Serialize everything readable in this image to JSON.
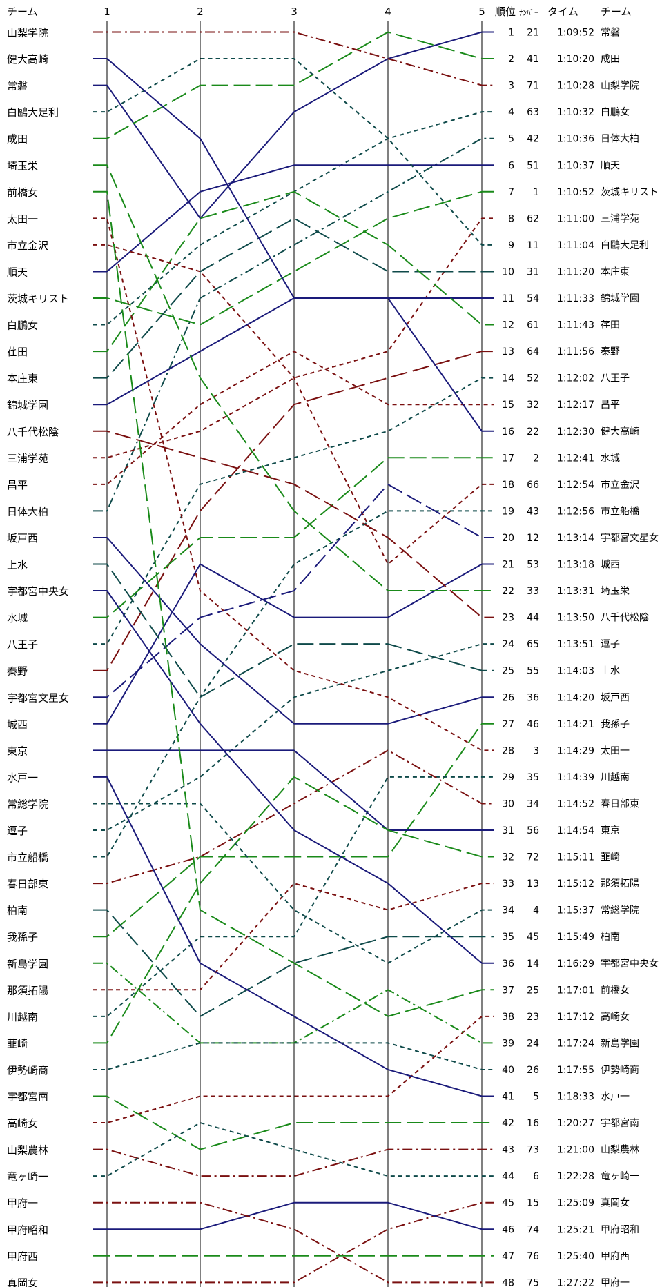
{
  "chart_data": {
    "type": "line",
    "title": "",
    "header": {
      "left_team": "チーム",
      "rank": "順位",
      "number": "ﾅﾝﾊﾞｰ",
      "time": "タイム",
      "right_team": "チーム"
    },
    "x": [
      "1",
      "2",
      "3",
      "4",
      "5"
    ],
    "ylim": [
      1,
      48
    ],
    "y_inverted": true,
    "start_order": [
      "山梨学院",
      "健大高崎",
      "常磐",
      "白鷗大足利",
      "成田",
      "埼玉栄",
      "前橋女",
      "太田一",
      "市立金沢",
      "順天",
      "茨城キリスト",
      "白鵬女",
      "荏田",
      "本庄東",
      "錦城学園",
      "八千代松陰",
      "三浦学苑",
      "昌平",
      "日体大柏",
      "坂戸西",
      "上水",
      "宇都宮中央女",
      "水城",
      "八王子",
      "秦野",
      "宇都宮文星女",
      "城西",
      "東京",
      "水戸一",
      "常総学院",
      "逗子",
      "市立船橋",
      "春日部東",
      "柏南",
      "我孫子",
      "新島学園",
      "那須拓陽",
      "川越南",
      "韮崎",
      "伊勢崎商",
      "宇都宮南",
      "高崎女",
      "山梨農林",
      "竜ヶ崎一",
      "甲府一",
      "甲府昭和",
      "甲府西",
      "真岡女"
    ],
    "results": [
      {
        "rank": "1",
        "number": "21",
        "time": "1:09:52",
        "team": "常磐"
      },
      {
        "rank": "2",
        "number": "41",
        "time": "1:10:20",
        "team": "成田"
      },
      {
        "rank": "3",
        "number": "71",
        "time": "1:10:28",
        "team": "山梨学院"
      },
      {
        "rank": "4",
        "number": "63",
        "time": "1:10:32",
        "team": "白鵬女"
      },
      {
        "rank": "5",
        "number": "42",
        "time": "1:10:36",
        "team": "日体大柏"
      },
      {
        "rank": "6",
        "number": "51",
        "time": "1:10:37",
        "team": "順天"
      },
      {
        "rank": "7",
        "number": "1",
        "time": "1:10:52",
        "team": "茨城キリスト"
      },
      {
        "rank": "8",
        "number": "62",
        "time": "1:11:00",
        "team": "三浦学苑"
      },
      {
        "rank": "9",
        "number": "11",
        "time": "1:11:04",
        "team": "白鷗大足利"
      },
      {
        "rank": "10",
        "number": "31",
        "time": "1:11:20",
        "team": "本庄東"
      },
      {
        "rank": "11",
        "number": "54",
        "time": "1:11:33",
        "team": "錦城学園"
      },
      {
        "rank": "12",
        "number": "61",
        "time": "1:11:43",
        "team": "荏田"
      },
      {
        "rank": "13",
        "number": "64",
        "time": "1:11:56",
        "team": "秦野"
      },
      {
        "rank": "14",
        "number": "52",
        "time": "1:12:02",
        "team": "八王子"
      },
      {
        "rank": "15",
        "number": "32",
        "time": "1:12:17",
        "team": "昌平"
      },
      {
        "rank": "16",
        "number": "22",
        "time": "1:12:30",
        "team": "健大高崎"
      },
      {
        "rank": "17",
        "number": "2",
        "time": "1:12:41",
        "team": "水城"
      },
      {
        "rank": "18",
        "number": "66",
        "time": "1:12:54",
        "team": "市立金沢"
      },
      {
        "rank": "19",
        "number": "43",
        "time": "1:12:56",
        "team": "市立船橋"
      },
      {
        "rank": "20",
        "number": "12",
        "time": "1:13:14",
        "team": "宇都宮文星女"
      },
      {
        "rank": "21",
        "number": "53",
        "time": "1:13:18",
        "team": "城西"
      },
      {
        "rank": "22",
        "number": "33",
        "time": "1:13:31",
        "team": "埼玉栄"
      },
      {
        "rank": "23",
        "number": "44",
        "time": "1:13:50",
        "team": "八千代松陰"
      },
      {
        "rank": "24",
        "number": "65",
        "time": "1:13:51",
        "team": "逗子"
      },
      {
        "rank": "25",
        "number": "55",
        "time": "1:14:03",
        "team": "上水"
      },
      {
        "rank": "26",
        "number": "36",
        "time": "1:14:20",
        "team": "坂戸西"
      },
      {
        "rank": "27",
        "number": "46",
        "time": "1:14:21",
        "team": "我孫子"
      },
      {
        "rank": "28",
        "number": "3",
        "time": "1:14:29",
        "team": "太田一"
      },
      {
        "rank": "29",
        "number": "35",
        "time": "1:14:39",
        "team": "川越南"
      },
      {
        "rank": "30",
        "number": "34",
        "time": "1:14:52",
        "team": "春日部東"
      },
      {
        "rank": "31",
        "number": "56",
        "time": "1:14:54",
        "team": "東京"
      },
      {
        "rank": "32",
        "number": "72",
        "time": "1:15:11",
        "team": "韮崎"
      },
      {
        "rank": "33",
        "number": "13",
        "time": "1:15:12",
        "team": "那須拓陽"
      },
      {
        "rank": "34",
        "number": "4",
        "time": "1:15:37",
        "team": "常総学院"
      },
      {
        "rank": "35",
        "number": "45",
        "time": "1:15:49",
        "team": "柏南"
      },
      {
        "rank": "36",
        "number": "14",
        "time": "1:16:29",
        "team": "宇都宮中央女"
      },
      {
        "rank": "37",
        "number": "25",
        "time": "1:17:01",
        "team": "前橋女"
      },
      {
        "rank": "38",
        "number": "23",
        "time": "1:17:12",
        "team": "高崎女"
      },
      {
        "rank": "39",
        "number": "24",
        "time": "1:17:24",
        "team": "新島学園"
      },
      {
        "rank": "40",
        "number": "26",
        "time": "1:17:55",
        "team": "伊勢崎商"
      },
      {
        "rank": "41",
        "number": "5",
        "time": "1:18:33",
        "team": "水戸一"
      },
      {
        "rank": "42",
        "number": "16",
        "time": "1:20:27",
        "team": "宇都宮南"
      },
      {
        "rank": "43",
        "number": "73",
        "time": "1:21:00",
        "team": "山梨農林"
      },
      {
        "rank": "44",
        "number": "6",
        "time": "1:22:28",
        "team": "竜ヶ崎一"
      },
      {
        "rank": "45",
        "number": "15",
        "time": "1:25:09",
        "team": "真岡女"
      },
      {
        "rank": "46",
        "number": "74",
        "time": "1:25:21",
        "team": "甲府昭和"
      },
      {
        "rank": "47",
        "number": "76",
        "time": "1:25:40",
        "team": "甲府西"
      },
      {
        "rank": "48",
        "number": "75",
        "time": "1:27:22",
        "team": "甲府一"
      }
    ],
    "colors": {
      "navy": "#1a1a7a",
      "green": "#1a8a1a",
      "maroon": "#7a1010",
      "teal": "#0f4a4a"
    },
    "series": [
      {
        "name": "常磐",
        "values": [
          3,
          8,
          4,
          2,
          1
        ],
        "color": "navy",
        "dash": "solid"
      },
      {
        "name": "成田",
        "values": [
          5,
          3,
          3,
          1,
          2
        ],
        "color": "green",
        "dash": "longdash"
      },
      {
        "name": "山梨学院",
        "values": [
          1,
          1,
          1,
          2,
          3
        ],
        "color": "maroon",
        "dash": "dashdot"
      },
      {
        "name": "白鵬女",
        "values": [
          12,
          9,
          7,
          5,
          4
        ],
        "color": "teal",
        "dash": "shortdash"
      },
      {
        "name": "日体大柏",
        "values": [
          19,
          11,
          9,
          7,
          5
        ],
        "color": "teal",
        "dash": "dashdot"
      },
      {
        "name": "順天",
        "values": [
          10,
          7,
          6,
          6,
          6
        ],
        "color": "navy",
        "dash": "solid"
      },
      {
        "name": "茨城キリスト",
        "values": [
          11,
          12,
          10,
          8,
          7
        ],
        "color": "green",
        "dash": "longdash"
      },
      {
        "name": "三浦学苑",
        "values": [
          17,
          16,
          14,
          13,
          8
        ],
        "color": "maroon",
        "dash": "shortdash"
      },
      {
        "name": "白鷗大足利",
        "values": [
          4,
          2,
          2,
          5,
          9
        ],
        "color": "teal",
        "dash": "shortdash"
      },
      {
        "name": "本庄東",
        "values": [
          14,
          10,
          8,
          10,
          10
        ],
        "color": "teal",
        "dash": "longdash"
      },
      {
        "name": "錦城学園",
        "values": [
          15,
          13,
          11,
          11,
          11
        ],
        "color": "navy",
        "dash": "solid"
      },
      {
        "name": "荏田",
        "values": [
          13,
          8,
          7,
          9,
          12
        ],
        "color": "green",
        "dash": "longdash"
      },
      {
        "name": "秦野",
        "values": [
          25,
          19,
          15,
          14,
          13
        ],
        "color": "maroon",
        "dash": "longdash"
      },
      {
        "name": "八王子",
        "values": [
          24,
          18,
          17,
          16,
          14
        ],
        "color": "teal",
        "dash": "shortdash"
      },
      {
        "name": "昌平",
        "values": [
          18,
          15,
          13,
          15,
          15
        ],
        "color": "maroon",
        "dash": "shortdash"
      },
      {
        "name": "健大高崎",
        "values": [
          2,
          5,
          11,
          11,
          16
        ],
        "color": "navy",
        "dash": "solid"
      },
      {
        "name": "水城",
        "values": [
          23,
          20,
          20,
          17,
          17
        ],
        "color": "green",
        "dash": "longdash"
      },
      {
        "name": "市立金沢",
        "values": [
          9,
          10,
          14,
          21,
          18
        ],
        "color": "maroon",
        "dash": "shortdash"
      },
      {
        "name": "市立船橋",
        "values": [
          32,
          26,
          21,
          19,
          19
        ],
        "color": "teal",
        "dash": "shortdash"
      },
      {
        "name": "宇都宮文星女",
        "values": [
          26,
          23,
          22,
          18,
          20
        ],
        "color": "navy",
        "dash": "longdash"
      },
      {
        "name": "城西",
        "values": [
          27,
          21,
          23,
          23,
          21
        ],
        "color": "navy",
        "dash": "solid"
      },
      {
        "name": "埼玉栄",
        "values": [
          6,
          14,
          19,
          22,
          22
        ],
        "color": "green",
        "dash": "longdash"
      },
      {
        "name": "八千代松陰",
        "values": [
          16,
          17,
          18,
          20,
          23
        ],
        "color": "maroon",
        "dash": "longdash"
      },
      {
        "name": "逗子",
        "values": [
          31,
          29,
          26,
          25,
          24
        ],
        "color": "teal",
        "dash": "shortdash"
      },
      {
        "name": "上水",
        "values": [
          21,
          26,
          24,
          24,
          25
        ],
        "color": "teal",
        "dash": "longdash"
      },
      {
        "name": "坂戸西",
        "values": [
          20,
          24,
          27,
          27,
          26
        ],
        "color": "navy",
        "dash": "solid"
      },
      {
        "name": "我孫子",
        "values": [
          35,
          32,
          32,
          32,
          27
        ],
        "color": "green",
        "dash": "longdash"
      },
      {
        "name": "太田一",
        "values": [
          8,
          22,
          25,
          26,
          28
        ],
        "color": "maroon",
        "dash": "shortdash"
      },
      {
        "name": "川越南",
        "values": [
          38,
          35,
          35,
          29,
          29
        ],
        "color": "teal",
        "dash": "shortdash"
      },
      {
        "name": "春日部東",
        "values": [
          33,
          32,
          30,
          28,
          30
        ],
        "color": "maroon",
        "dash": "dashdot"
      },
      {
        "name": "東京",
        "values": [
          28,
          28,
          28,
          31,
          31
        ],
        "color": "navy",
        "dash": "solid"
      },
      {
        "name": "韮崎",
        "values": [
          39,
          33,
          29,
          31,
          32
        ],
        "color": "green",
        "dash": "longdash"
      },
      {
        "name": "那須拓陽",
        "values": [
          37,
          37,
          33,
          34,
          33
        ],
        "color": "maroon",
        "dash": "shortdash"
      },
      {
        "name": "常総学院",
        "values": [
          30,
          30,
          34,
          36,
          34
        ],
        "color": "teal",
        "dash": "shortdash"
      },
      {
        "name": "柏南",
        "values": [
          34,
          38,
          36,
          35,
          35
        ],
        "color": "teal",
        "dash": "longdash"
      },
      {
        "name": "宇都宮中央女",
        "values": [
          22,
          27,
          31,
          33,
          36
        ],
        "color": "navy",
        "dash": "solid"
      },
      {
        "name": "前橋女",
        "values": [
          7,
          34,
          36,
          38,
          37
        ],
        "color": "green",
        "dash": "longdash"
      },
      {
        "name": "高崎女",
        "values": [
          42,
          41,
          41,
          41,
          38
        ],
        "color": "maroon",
        "dash": "shortdash"
      },
      {
        "name": "新島学園",
        "values": [
          36,
          39,
          39,
          37,
          39
        ],
        "color": "green",
        "dash": "dashdot"
      },
      {
        "name": "伊勢崎商",
        "values": [
          40,
          39,
          39,
          39,
          40
        ],
        "color": "teal",
        "dash": "shortdash"
      },
      {
        "name": "水戸一",
        "values": [
          29,
          36,
          38,
          40,
          41
        ],
        "color": "navy",
        "dash": "solid"
      },
      {
        "name": "宇都宮南",
        "values": [
          41,
          43,
          42,
          42,
          42
        ],
        "color": "green",
        "dash": "longdash"
      },
      {
        "name": "山梨農林",
        "values": [
          43,
          44,
          44,
          43,
          43
        ],
        "color": "maroon",
        "dash": "dashdot"
      },
      {
        "name": "竜ヶ崎一",
        "values": [
          44,
          42,
          43,
          44,
          44
        ],
        "color": "teal",
        "dash": "shortdash"
      },
      {
        "name": "真岡女",
        "values": [
          48,
          48,
          48,
          46,
          45
        ],
        "color": "maroon",
        "dash": "dashdot"
      },
      {
        "name": "甲府昭和",
        "values": [
          46,
          46,
          45,
          45,
          46
        ],
        "color": "navy",
        "dash": "solid"
      },
      {
        "name": "甲府西",
        "values": [
          47,
          47,
          47,
          47,
          47
        ],
        "color": "green",
        "dash": "longdash"
      },
      {
        "name": "甲府一",
        "values": [
          45,
          45,
          46,
          48,
          48
        ],
        "color": "maroon",
        "dash": "dashdot"
      }
    ]
  }
}
